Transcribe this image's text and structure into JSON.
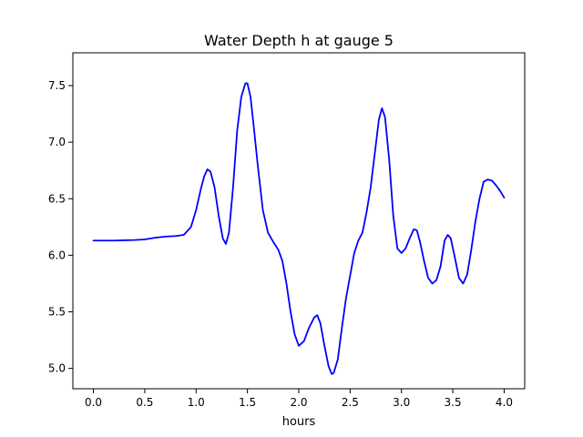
{
  "chart_data": {
    "type": "line",
    "title": "Water Depth h at gauge 5",
    "xlabel": "hours",
    "ylabel": "",
    "xlim": [
      -0.2,
      4.2
    ],
    "ylim": [
      4.82,
      7.79
    ],
    "x_ticks": [
      0.0,
      0.5,
      1.0,
      1.5,
      2.0,
      2.5,
      3.0,
      3.5,
      4.0
    ],
    "x_tick_labels": [
      "0.0",
      "0.5",
      "1.0",
      "1.5",
      "2.0",
      "2.5",
      "3.0",
      "3.5",
      "4.0"
    ],
    "y_ticks": [
      5.0,
      5.5,
      6.0,
      6.5,
      7.0,
      7.5
    ],
    "y_tick_labels": [
      "5.0",
      "5.5",
      "6.0",
      "6.5",
      "7.0",
      "7.5"
    ],
    "grid": false,
    "legend": "none",
    "series": [
      {
        "color": "#0000ff",
        "x": [
          0.0,
          0.2,
          0.4,
          0.5,
          0.6,
          0.7,
          0.8,
          0.88,
          0.95,
          1.0,
          1.05,
          1.08,
          1.11,
          1.14,
          1.18,
          1.22,
          1.26,
          1.29,
          1.32,
          1.36,
          1.4,
          1.44,
          1.48,
          1.5,
          1.53,
          1.56,
          1.6,
          1.65,
          1.7,
          1.75,
          1.8,
          1.84,
          1.88,
          1.92,
          1.96,
          2.0,
          2.05,
          2.1,
          2.15,
          2.18,
          2.21,
          2.25,
          2.29,
          2.32,
          2.34,
          2.38,
          2.42,
          2.46,
          2.5,
          2.54,
          2.58,
          2.62,
          2.66,
          2.7,
          2.74,
          2.78,
          2.81,
          2.84,
          2.88,
          2.92,
          2.96,
          3.0,
          3.04,
          3.08,
          3.12,
          3.15,
          3.18,
          3.22,
          3.26,
          3.3,
          3.34,
          3.38,
          3.42,
          3.45,
          3.48,
          3.52,
          3.56,
          3.6,
          3.64,
          3.68,
          3.72,
          3.76,
          3.8,
          3.84,
          3.88,
          3.92,
          3.96,
          4.0
        ],
        "y": [
          6.13,
          6.13,
          6.135,
          6.14,
          6.155,
          6.165,
          6.17,
          6.18,
          6.25,
          6.4,
          6.6,
          6.7,
          6.76,
          6.74,
          6.6,
          6.35,
          6.15,
          6.1,
          6.2,
          6.6,
          7.1,
          7.4,
          7.52,
          7.52,
          7.4,
          7.15,
          6.8,
          6.4,
          6.2,
          6.12,
          6.05,
          5.95,
          5.75,
          5.5,
          5.3,
          5.2,
          5.24,
          5.36,
          5.45,
          5.47,
          5.4,
          5.2,
          5.02,
          4.95,
          4.96,
          5.08,
          5.36,
          5.62,
          5.82,
          6.02,
          6.13,
          6.2,
          6.38,
          6.6,
          6.9,
          7.2,
          7.3,
          7.22,
          6.85,
          6.35,
          6.06,
          6.02,
          6.06,
          6.15,
          6.23,
          6.22,
          6.12,
          5.95,
          5.8,
          5.75,
          5.78,
          5.9,
          6.13,
          6.18,
          6.15,
          5.98,
          5.8,
          5.75,
          5.83,
          6.05,
          6.3,
          6.5,
          6.65,
          6.67,
          6.66,
          6.62,
          6.57,
          6.51
        ]
      }
    ]
  }
}
